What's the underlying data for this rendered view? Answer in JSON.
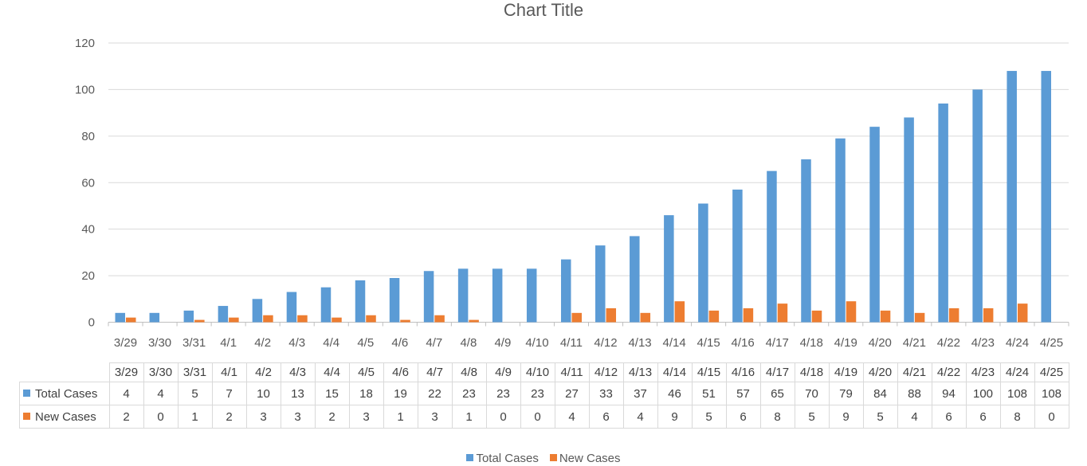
{
  "chart_data": {
    "type": "bar",
    "title": "Chart Title",
    "categories": [
      "3/29",
      "3/30",
      "3/31",
      "4/1",
      "4/2",
      "4/3",
      "4/4",
      "4/5",
      "4/6",
      "4/7",
      "4/8",
      "4/9",
      "4/10",
      "4/11",
      "4/12",
      "4/13",
      "4/14",
      "4/15",
      "4/16",
      "4/17",
      "4/18",
      "4/19",
      "4/20",
      "4/21",
      "4/22",
      "4/23",
      "4/24",
      "4/25"
    ],
    "series": [
      {
        "name": "Total Cases",
        "color": "#5b9bd5",
        "values": [
          4,
          4,
          5,
          7,
          10,
          13,
          15,
          18,
          19,
          22,
          23,
          23,
          23,
          27,
          33,
          37,
          46,
          51,
          57,
          65,
          70,
          79,
          84,
          88,
          94,
          100,
          108,
          108
        ]
      },
      {
        "name": "New Cases",
        "color": "#ed7d31",
        "values": [
          2,
          0,
          1,
          2,
          3,
          3,
          2,
          3,
          1,
          3,
          1,
          0,
          0,
          4,
          6,
          4,
          9,
          5,
          6,
          8,
          5,
          9,
          5,
          4,
          6,
          6,
          8,
          0
        ]
      }
    ],
    "ylim": [
      0,
      120
    ],
    "yticks": [
      0,
      20,
      40,
      60,
      80,
      100,
      120
    ],
    "grid": true,
    "data_table": true,
    "legend": "bottom"
  }
}
